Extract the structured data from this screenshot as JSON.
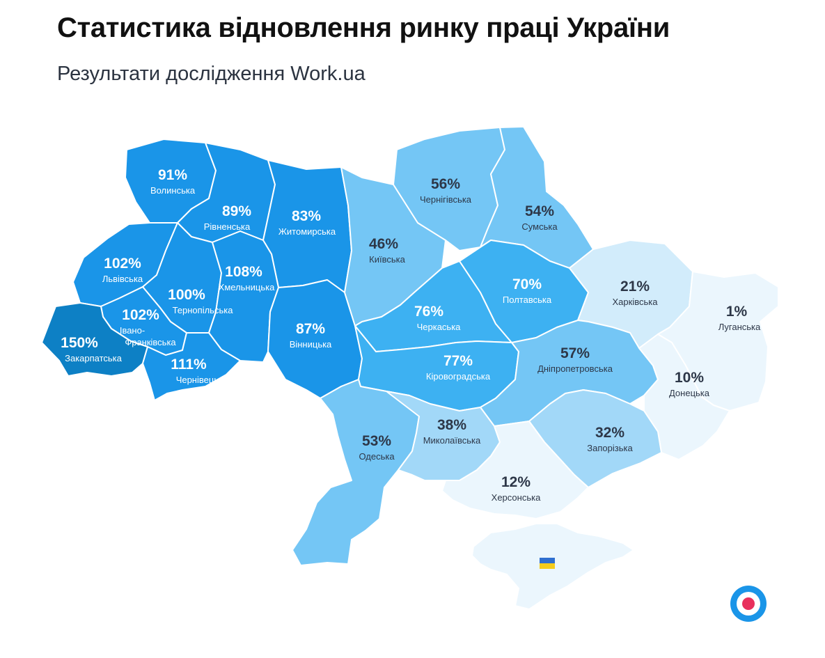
{
  "header": {
    "title": "Статистика відновлення ринку праці України",
    "subtitle": "Результати дослідження Work.ua"
  },
  "colors": {
    "very_dark": "#0d80c5",
    "dark": "#1a95e8",
    "medium": "#3db1f2",
    "light": "#74c6f5",
    "lighter": "#a2d8f8",
    "pale": "#d2ecfb",
    "palest": "#ebf6fd",
    "border": "#ffffff",
    "label_light": "#ffffff",
    "label_dark": "#2d3748"
  },
  "regions": [
    {
      "name": "Волинська",
      "value": "91%"
    },
    {
      "name": "Рівненська",
      "value": "89%"
    },
    {
      "name": "Житомирська",
      "value": "83%"
    },
    {
      "name": "Київська",
      "value": "46%"
    },
    {
      "name": "Чернігівська",
      "value": "56%"
    },
    {
      "name": "Сумська",
      "value": "54%"
    },
    {
      "name": "Львівська",
      "value": "102%"
    },
    {
      "name": "Хмельницька",
      "value": "108%"
    },
    {
      "name": "Тернопільська",
      "value": "100%"
    },
    {
      "name": "Івано-\nФранківська",
      "value": "102%"
    },
    {
      "name": "Закарпатська",
      "value": "150%"
    },
    {
      "name": "Чернівецька",
      "value": "111%"
    },
    {
      "name": "Вінницька",
      "value": "87%"
    },
    {
      "name": "Черкаська",
      "value": "76%"
    },
    {
      "name": "Полтавська",
      "value": "70%"
    },
    {
      "name": "Харківська",
      "value": "21%"
    },
    {
      "name": "Луганська",
      "value": "1%"
    },
    {
      "name": "Кіровоградська",
      "value": "77%"
    },
    {
      "name": "Дніпропетровська",
      "value": "57%"
    },
    {
      "name": "Донецька",
      "value": "10%"
    },
    {
      "name": "Одеська",
      "value": "53%"
    },
    {
      "name": "Миколаївська",
      "value": "38%"
    },
    {
      "name": "Запорізька",
      "value": "32%"
    },
    {
      "name": "Херсонська",
      "value": "12%"
    }
  ],
  "crimea_icon": "ukraine-flag-icon",
  "logo_icon": "work-ua-logo-icon"
}
